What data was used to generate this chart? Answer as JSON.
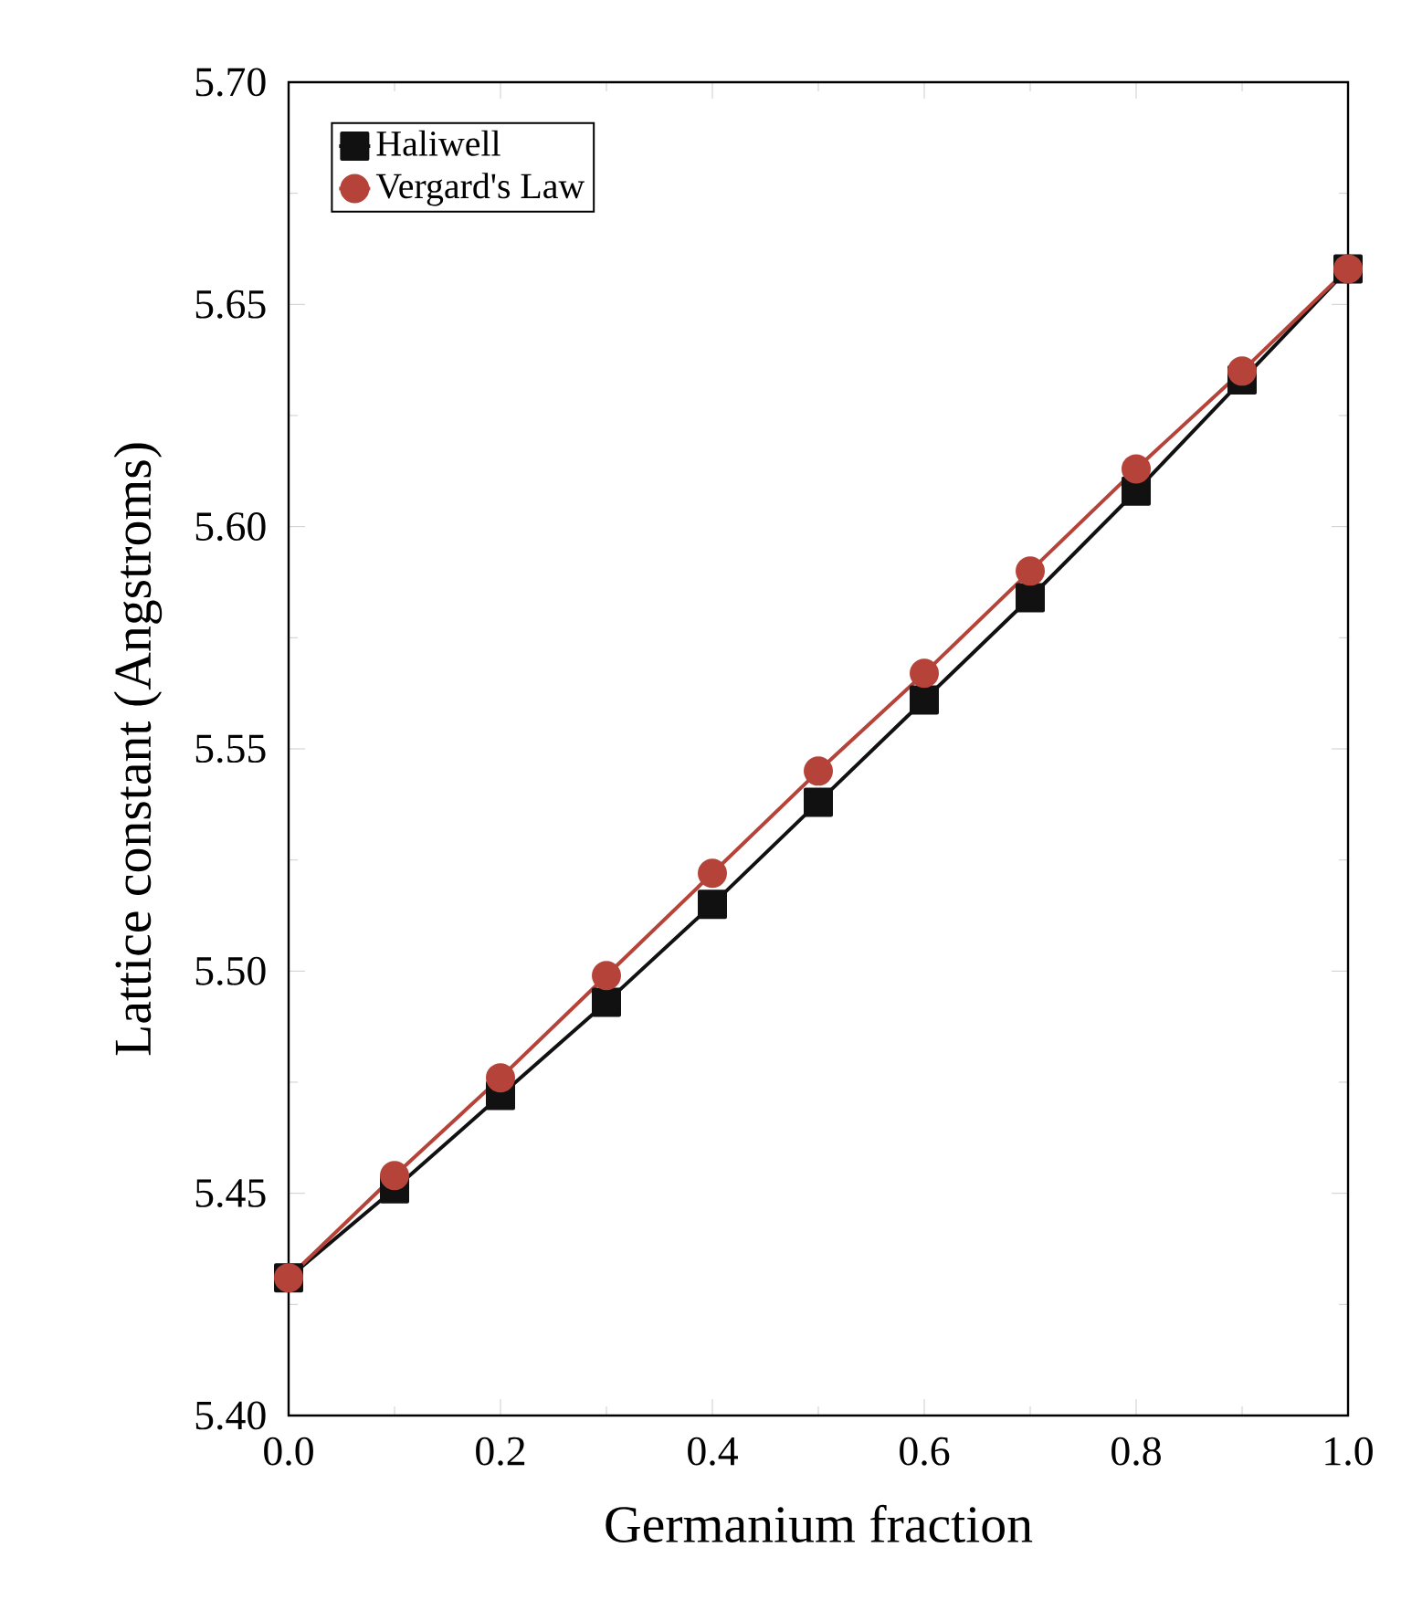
{
  "chart_data": {
    "type": "line",
    "xlabel": "Germanium fraction",
    "ylabel": "Lattice constant (Angstroms)",
    "x": [
      0,
      0.1,
      0.2,
      0.3,
      0.4,
      0.5,
      0.6,
      0.7,
      0.8,
      0.9,
      1.0
    ],
    "series": [
      {
        "name": "Haliwell",
        "color": "#111111",
        "marker": "square",
        "values": [
          5.431,
          5.451,
          5.472,
          5.493,
          5.515,
          5.538,
          5.561,
          5.584,
          5.608,
          5.633,
          5.658
        ]
      },
      {
        "name": "Vergard's Law",
        "color": "#b5433a",
        "marker": "circle",
        "values": [
          5.431,
          5.454,
          5.476,
          5.499,
          5.522,
          5.545,
          5.567,
          5.59,
          5.613,
          5.635,
          5.658
        ]
      }
    ],
    "xlim": [
      0,
      1.0
    ],
    "ylim": [
      5.4,
      5.7
    ],
    "xticks": [
      {
        "value": 0,
        "label": "0.0"
      },
      {
        "value": 0.2,
        "label": "0.2"
      },
      {
        "value": 0.4,
        "label": "0.4"
      },
      {
        "value": 0.6,
        "label": "0.6"
      },
      {
        "value": 0.8,
        "label": "0.8"
      },
      {
        "value": 1.0,
        "label": "1.0"
      }
    ],
    "yticks": [
      {
        "value": 5.4,
        "label": "5.40"
      },
      {
        "value": 5.45,
        "label": "5.45"
      },
      {
        "value": 5.5,
        "label": "5.50"
      },
      {
        "value": 5.55,
        "label": "5.55"
      },
      {
        "value": 5.6,
        "label": "5.60"
      },
      {
        "value": 5.65,
        "label": "5.65"
      },
      {
        "value": 5.7,
        "label": "5.70"
      }
    ],
    "grid": false,
    "legend": "top left",
    "line_style": "solid"
  }
}
